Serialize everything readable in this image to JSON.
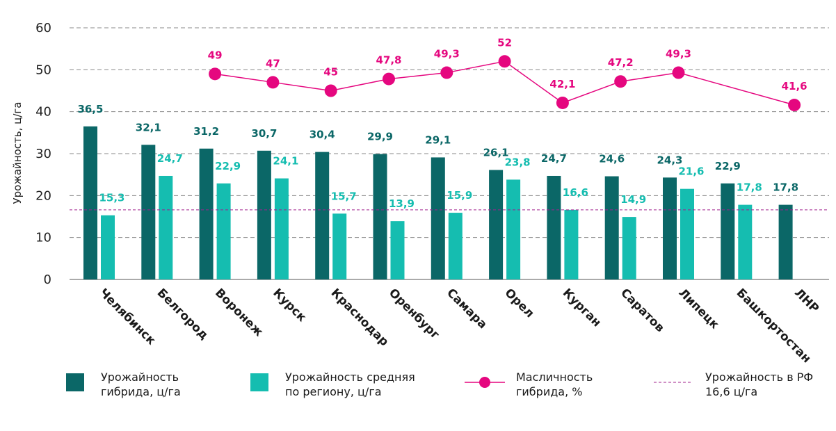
{
  "chart_data": {
    "type": "bar",
    "ylabel": "Урожайность, ц/га",
    "ylim": [
      0,
      60
    ],
    "yticks": [
      0,
      10,
      20,
      30,
      40,
      50,
      60
    ],
    "grid": "horizontal-dashed",
    "categories": [
      "Челябинск",
      "Белгород",
      "Воронеж",
      "Курск",
      "Краснодар",
      "Оренбург",
      "Самара",
      "Орел",
      "Курган",
      "Саратов",
      "Липецк",
      "Башкортостан",
      "ЛНР"
    ],
    "series": [
      {
        "name": "Урожайность гибрида, ц/га",
        "kind": "bar",
        "color": "#0b6767",
        "values": [
          36.5,
          32.1,
          31.2,
          30.7,
          30.4,
          29.9,
          29.1,
          26.1,
          24.7,
          24.6,
          24.3,
          22.9,
          17.8
        ],
        "labels": [
          "36,5",
          "32,1",
          "31,2",
          "30,7",
          "30,4",
          "29,9",
          "29,1",
          "26,1",
          "24,7",
          "24,6",
          "24,3",
          "22,9",
          "17,8"
        ]
      },
      {
        "name": "Урожайность средняя по региону, ц/га",
        "kind": "bar",
        "color": "#15bdb0",
        "values": [
          15.3,
          24.7,
          22.9,
          24.1,
          15.7,
          13.9,
          15.9,
          23.8,
          16.6,
          14.9,
          21.6,
          17.8,
          null
        ],
        "labels": [
          "15,3",
          "24,7",
          "22,9",
          "24,1",
          "15,7",
          "13,9",
          "15,9",
          "23,8",
          "16,6",
          "14,9",
          "21,6",
          "17,8",
          ""
        ]
      },
      {
        "name": "Масличность гибрида, %",
        "kind": "line",
        "color": "#e5077f",
        "values": [
          null,
          null,
          49,
          47,
          45,
          47.8,
          49.3,
          52,
          42.1,
          47.2,
          49.3,
          null,
          41.6
        ],
        "labels": [
          "",
          "",
          "49",
          "47",
          "45",
          "47,8",
          "49,3",
          "52",
          "42,1",
          "47,2",
          "49,3",
          "",
          "41,6"
        ]
      },
      {
        "name": "Урожайность в РФ 16,6 ц/га",
        "kind": "reference-line",
        "color": "#a0208e",
        "value": 16.6
      }
    ],
    "legend_placement": "bottom",
    "legend": [
      {
        "line1": "Урожайность",
        "line2": "гибрида, ц/га",
        "symbol": "square",
        "color": "#0b6767"
      },
      {
        "line1": "Урожайность средняя",
        "line2": "по региону, ц/га",
        "symbol": "square",
        "color": "#15bdb0"
      },
      {
        "line1": "Масличность",
        "line2": "гибрида, %",
        "symbol": "line-marker",
        "color": "#e5077f"
      },
      {
        "line1": "Урожайность в РФ",
        "line2": "16,6 ц/га",
        "symbol": "dashed-line",
        "color": "#a0208e"
      }
    ]
  }
}
